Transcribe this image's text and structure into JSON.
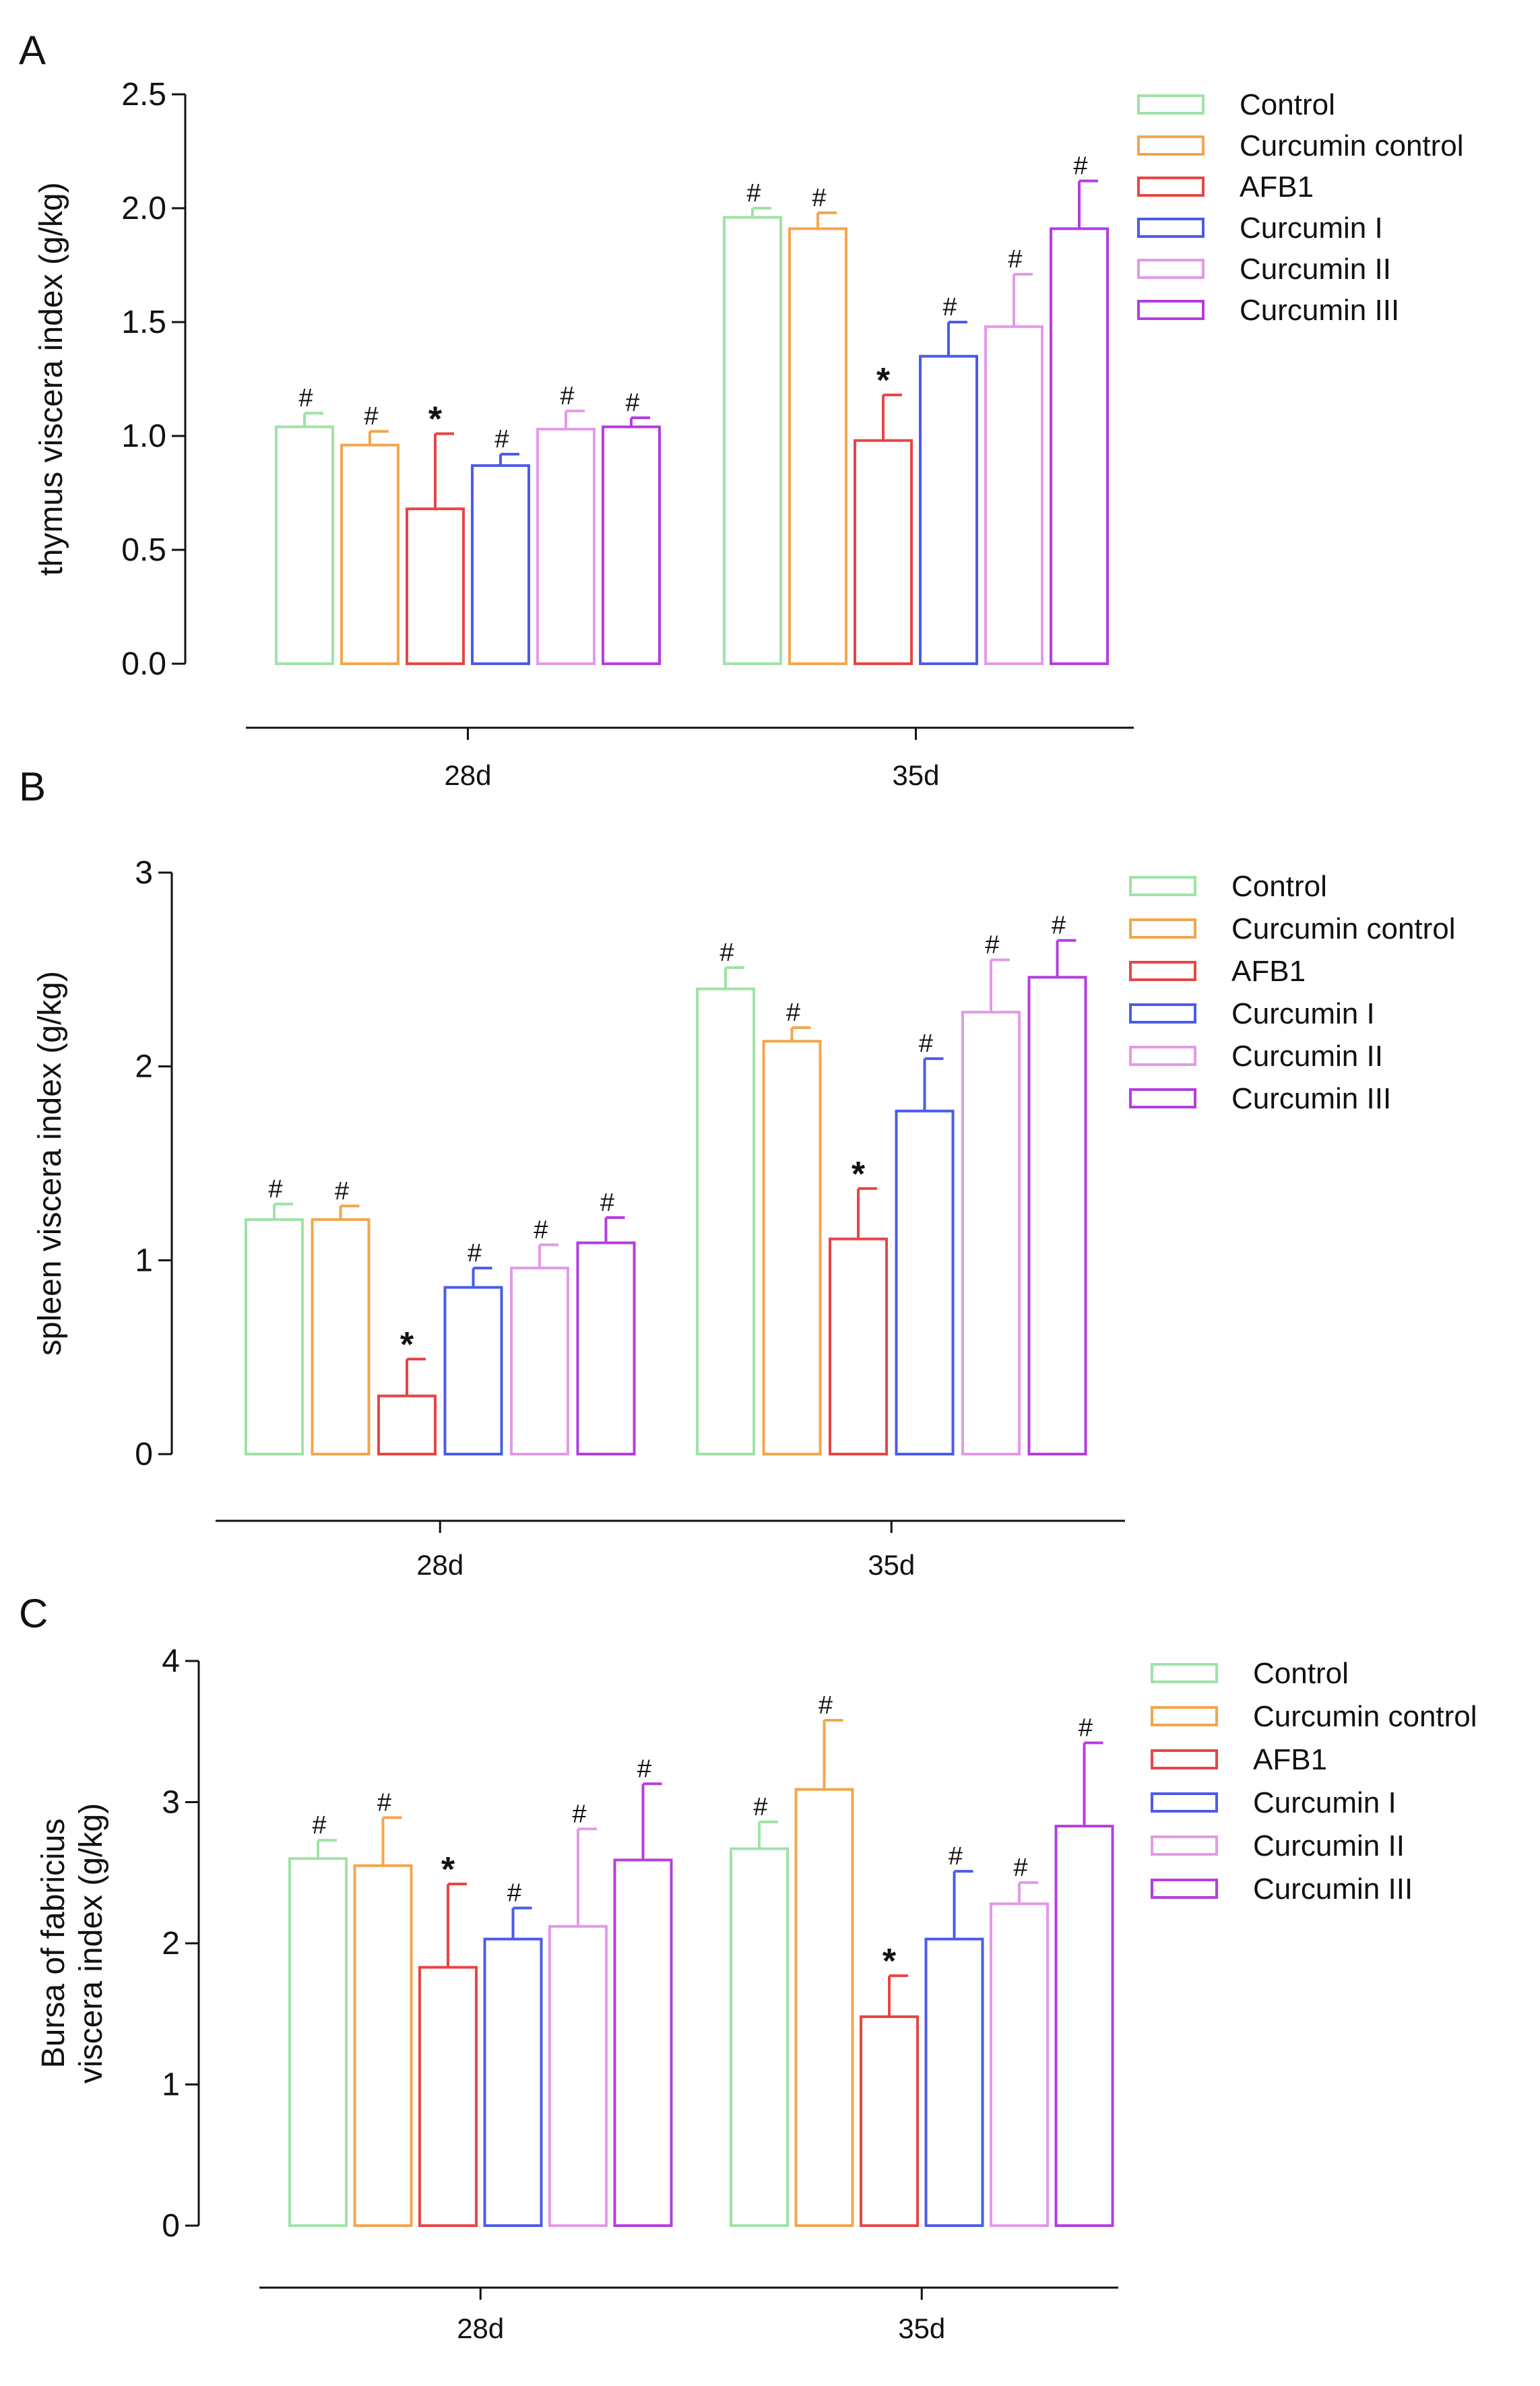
{
  "figure_title": "",
  "chart_data": [
    {
      "panel_label": "A",
      "type": "bar",
      "title": "",
      "xlabel": "",
      "ylabel": "thymus viscera index (g/kg)",
      "ylim": [
        0,
        2.5
      ],
      "yticks": [
        "0.0",
        "0.5",
        "1.0",
        "1.5",
        "2.0",
        "2.5"
      ],
      "grid": false,
      "legend_position": "top-right",
      "categories": [
        "28d",
        "35d"
      ],
      "series": [
        {
          "name": "Control",
          "color": "#9ee3a6",
          "values": [
            1.04,
            1.96
          ],
          "errors": [
            0.06,
            0.04
          ],
          "significance": [
            "#",
            "#"
          ]
        },
        {
          "name": "Curcumin control",
          "color": "#f4a54d",
          "values": [
            0.96,
            1.91
          ],
          "errors": [
            0.06,
            0.07
          ],
          "significance": [
            "#",
            "#"
          ]
        },
        {
          "name": "AFB1",
          "color": "#e84545",
          "values": [
            0.68,
            0.98
          ],
          "errors": [
            0.33,
            0.2
          ],
          "significance": [
            "*",
            "*"
          ]
        },
        {
          "name": "Curcumin I",
          "color": "#4b5ce8",
          "values": [
            0.87,
            1.35
          ],
          "errors": [
            0.05,
            0.15
          ],
          "significance": [
            "#",
            "#"
          ]
        },
        {
          "name": "Curcumin II",
          "color": "#e29ae6",
          "values": [
            1.03,
            1.48
          ],
          "errors": [
            0.08,
            0.23
          ],
          "significance": [
            "#",
            "#"
          ]
        },
        {
          "name": "Curcumin III",
          "color": "#b43de0",
          "values": [
            1.04,
            1.91
          ],
          "errors": [
            0.04,
            0.21
          ],
          "significance": [
            "#",
            "#"
          ]
        }
      ]
    },
    {
      "panel_label": "B",
      "type": "bar",
      "title": "",
      "xlabel": "",
      "ylabel": "spleen viscera index (g/kg)",
      "ylim": [
        0,
        3
      ],
      "yticks": [
        "0",
        "1",
        "2",
        "3"
      ],
      "grid": false,
      "legend_position": "top-right",
      "categories": [
        "28d",
        "35d"
      ],
      "series": [
        {
          "name": "Control",
          "color": "#9ee3a6",
          "values": [
            1.21,
            2.4
          ],
          "errors": [
            0.08,
            0.11
          ],
          "significance": [
            "#",
            "#"
          ]
        },
        {
          "name": "Curcumin control",
          "color": "#f4a54d",
          "values": [
            1.21,
            2.13
          ],
          "errors": [
            0.07,
            0.07
          ],
          "significance": [
            "#",
            "#"
          ]
        },
        {
          "name": "AFB1",
          "color": "#e84545",
          "values": [
            0.3,
            1.11
          ],
          "errors": [
            0.19,
            0.26
          ],
          "significance": [
            "*",
            "*"
          ]
        },
        {
          "name": "Curcumin I",
          "color": "#4b5ce8",
          "values": [
            0.86,
            1.77
          ],
          "errors": [
            0.1,
            0.27
          ],
          "significance": [
            "#",
            "#"
          ]
        },
        {
          "name": "Curcumin II",
          "color": "#e29ae6",
          "values": [
            0.96,
            2.28
          ],
          "errors": [
            0.12,
            0.27
          ],
          "significance": [
            "#",
            "#"
          ]
        },
        {
          "name": "Curcumin III",
          "color": "#b43de0",
          "values": [
            1.09,
            2.46
          ],
          "errors": [
            0.13,
            0.19
          ],
          "significance": [
            "#",
            "#"
          ]
        }
      ]
    },
    {
      "panel_label": "C",
      "type": "bar",
      "title": "",
      "xlabel": "",
      "ylabel": "Bursa of fabricius viscera index (g/kg)",
      "ylabel_lines": [
        "Bursa of fabricius",
        "viscera index (g/kg)"
      ],
      "ylim": [
        0,
        4
      ],
      "yticks": [
        "0",
        "1",
        "2",
        "3",
        "4"
      ],
      "grid": false,
      "legend_position": "top-right",
      "categories": [
        "28d",
        "35d"
      ],
      "series": [
        {
          "name": "Control",
          "color": "#9ee3a6",
          "values": [
            2.6,
            2.67
          ],
          "errors": [
            0.13,
            0.19
          ],
          "significance": [
            "#",
            "#"
          ]
        },
        {
          "name": "Curcumin control",
          "color": "#f4a54d",
          "values": [
            2.55,
            3.09
          ],
          "errors": [
            0.34,
            0.49
          ],
          "significance": [
            "#",
            "#"
          ]
        },
        {
          "name": "AFB1",
          "color": "#e84545",
          "values": [
            1.83,
            1.48
          ],
          "errors": [
            0.59,
            0.29
          ],
          "significance": [
            "*",
            "*"
          ]
        },
        {
          "name": "Curcumin I",
          "color": "#4b5ce8",
          "values": [
            2.03,
            2.03
          ],
          "errors": [
            0.22,
            0.48
          ],
          "significance": [
            "#",
            "#"
          ]
        },
        {
          "name": "Curcumin II",
          "color": "#e29ae6",
          "values": [
            2.12,
            2.28
          ],
          "errors": [
            0.69,
            0.15
          ],
          "significance": [
            "#",
            "#"
          ]
        },
        {
          "name": "Curcumin III",
          "color": "#b43de0",
          "values": [
            2.59,
            2.83
          ],
          "errors": [
            0.54,
            0.59
          ],
          "significance": [
            "#",
            "#"
          ]
        }
      ]
    }
  ]
}
